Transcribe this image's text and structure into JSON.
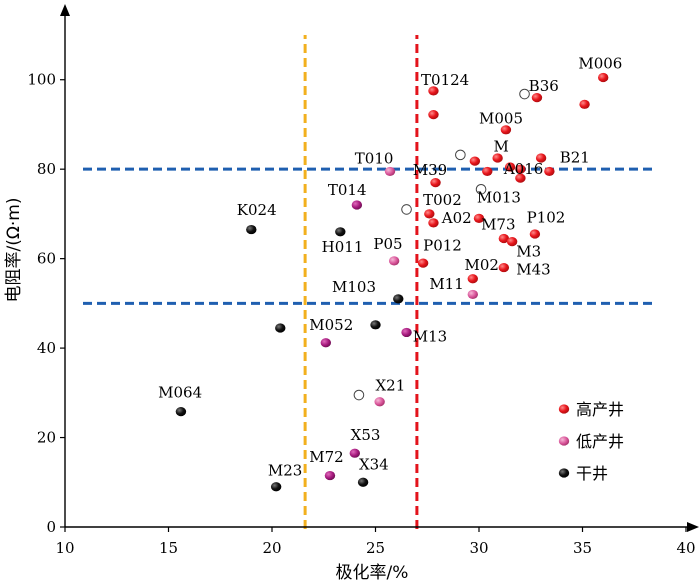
{
  "chart_data": {
    "type": "scatter",
    "xlabel": "极化率/%",
    "ylabel": "电阻率/(Ω·m)",
    "xlim": [
      10,
      40
    ],
    "ylim": [
      0,
      110
    ],
    "xticks": [
      10,
      15,
      20,
      25,
      30,
      35,
      40
    ],
    "yticks": [
      0,
      20,
      40,
      60,
      80,
      100
    ],
    "colors": {
      "high": "#e8151b",
      "low": "#d9559a",
      "dry": "#000000",
      "magenta": "#a5197d",
      "hline": "#1f5fb0",
      "vline_yellow": "#f2b01e",
      "vline_red": "#e3131b"
    },
    "thresholds": {
      "horizontal": [
        80,
        50
      ],
      "vertical": [
        21.6,
        27.0
      ]
    },
    "legend": [
      {
        "key": "high",
        "label": "高产井"
      },
      {
        "key": "low",
        "label": "低产井"
      },
      {
        "key": "dry",
        "label": "干井"
      }
    ],
    "series": [
      {
        "name": "高产井",
        "key": "high",
        "points": [
          {
            "x": 36.0,
            "y": 100.5
          },
          {
            "x": 32.8,
            "y": 96.0
          },
          {
            "x": 35.1,
            "y": 94.5
          },
          {
            "x": 27.8,
            "y": 97.5
          },
          {
            "x": 27.8,
            "y": 92.2
          },
          {
            "x": 31.3,
            "y": 88.8
          },
          {
            "x": 30.9,
            "y": 82.5
          },
          {
            "x": 29.8,
            "y": 81.8
          },
          {
            "x": 33.0,
            "y": 82.5
          },
          {
            "x": 31.5,
            "y": 80.5
          },
          {
            "x": 30.4,
            "y": 79.5
          },
          {
            "x": 33.4,
            "y": 79.5
          },
          {
            "x": 32.0,
            "y": 78.0
          },
          {
            "x": 27.9,
            "y": 77.0
          },
          {
            "x": 27.6,
            "y": 70.0
          },
          {
            "x": 30.0,
            "y": 69.0
          },
          {
            "x": 27.8,
            "y": 68.0
          },
          {
            "x": 32.7,
            "y": 65.5
          },
          {
            "x": 31.2,
            "y": 64.5
          },
          {
            "x": 31.6,
            "y": 63.8
          },
          {
            "x": 27.3,
            "y": 59.0
          },
          {
            "x": 31.2,
            "y": 58.0
          },
          {
            "x": 29.7,
            "y": 55.5
          },
          {
            "x": 32.0,
            "y": 80.0
          }
        ]
      },
      {
        "name": "低产井",
        "key": "low",
        "points": [
          {
            "x": 25.7,
            "y": 79.5
          },
          {
            "x": 25.9,
            "y": 59.5
          },
          {
            "x": 29.7,
            "y": 52.0
          },
          {
            "x": 25.2,
            "y": 28.0
          }
        ]
      },
      {
        "name": "干井",
        "key": "dry",
        "points": [
          {
            "x": 19.0,
            "y": 66.5
          },
          {
            "x": 23.3,
            "y": 66.0
          },
          {
            "x": 26.1,
            "y": 51.0
          },
          {
            "x": 20.4,
            "y": 44.5
          },
          {
            "x": 25.0,
            "y": 45.2
          },
          {
            "x": 15.6,
            "y": 25.8
          },
          {
            "x": 20.2,
            "y": 9.0
          },
          {
            "x": 24.4,
            "y": 10.0
          }
        ]
      },
      {
        "name": "magenta",
        "key": "magenta",
        "points": [
          {
            "x": 24.1,
            "y": 72.0
          },
          {
            "x": 22.6,
            "y": 41.2
          },
          {
            "x": 26.5,
            "y": 43.5
          },
          {
            "x": 24.0,
            "y": 16.5
          },
          {
            "x": 22.8,
            "y": 11.5
          }
        ]
      },
      {
        "name": "open",
        "key": "open",
        "points": [
          {
            "x": 32.2,
            "y": 96.8
          },
          {
            "x": 29.1,
            "y": 83.2
          },
          {
            "x": 30.1,
            "y": 75.5
          },
          {
            "x": 26.5,
            "y": 71.0
          },
          {
            "x": 24.2,
            "y": 29.5
          }
        ]
      }
    ],
    "annotations": [
      {
        "text": "M006",
        "x": 34.8,
        "y": 102.5
      },
      {
        "text": "T0124",
        "x": 27.2,
        "y": 98.8
      },
      {
        "text": "B36",
        "x": 32.4,
        "y": 97.5
      },
      {
        "text": "M005",
        "x": 30.0,
        "y": 90.2
      },
      {
        "text": "M",
        "x": 30.7,
        "y": 84.0
      },
      {
        "text": "B21",
        "x": 33.9,
        "y": 81.5
      },
      {
        "text": "T010",
        "x": 24.0,
        "y": 81.3
      },
      {
        "text": "M39",
        "x": 26.8,
        "y": 78.7
      },
      {
        "text": "A016",
        "x": 31.2,
        "y": 78.9
      },
      {
        "text": "T014",
        "x": 22.7,
        "y": 74.2
      },
      {
        "text": "M013",
        "x": 29.9,
        "y": 72.5
      },
      {
        "text": "K024",
        "x": 18.3,
        "y": 69.8
      },
      {
        "text": "T002",
        "x": 27.3,
        "y": 72.0
      },
      {
        "text": "A02",
        "x": 28.2,
        "y": 68.0
      },
      {
        "text": "M73",
        "x": 30.1,
        "y": 66.5
      },
      {
        "text": "P102",
        "x": 32.3,
        "y": 68.1
      },
      {
        "text": "H011",
        "x": 22.4,
        "y": 61.5
      },
      {
        "text": "P05",
        "x": 24.9,
        "y": 62.1
      },
      {
        "text": "P012",
        "x": 27.3,
        "y": 61.8
      },
      {
        "text": "M3",
        "x": 31.8,
        "y": 60.5
      },
      {
        "text": "M02",
        "x": 29.3,
        "y": 57.5
      },
      {
        "text": "M43",
        "x": 31.8,
        "y": 56.5
      },
      {
        "text": "M11",
        "x": 27.6,
        "y": 53.2
      },
      {
        "text": "M103",
        "x": 22.9,
        "y": 52.5
      },
      {
        "text": "M052",
        "x": 21.8,
        "y": 44.0
      },
      {
        "text": "M13",
        "x": 26.8,
        "y": 41.5
      },
      {
        "text": "X21",
        "x": 25.0,
        "y": 30.5
      },
      {
        "text": "M064",
        "x": 14.5,
        "y": 29.0
      },
      {
        "text": "X53",
        "x": 23.8,
        "y": 19.5
      },
      {
        "text": "M72",
        "x": 21.8,
        "y": 14.5
      },
      {
        "text": "X34",
        "x": 24.2,
        "y": 12.8
      },
      {
        "text": "M23",
        "x": 19.8,
        "y": 11.5
      }
    ]
  }
}
